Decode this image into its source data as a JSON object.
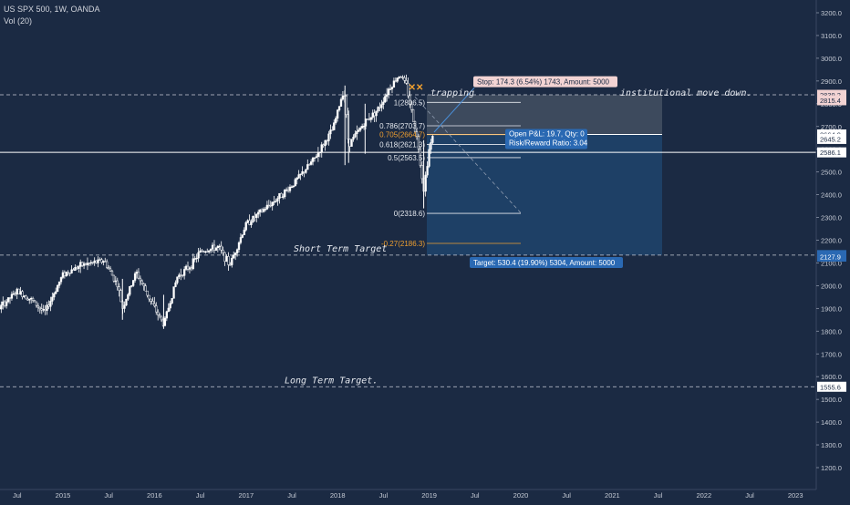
{
  "header": {
    "symbol_line": "US SPX 500, 1W, OANDA",
    "volume_line": "Vol (20)"
  },
  "colors": {
    "background": "#1b2a43",
    "candle_up": "#ffffff",
    "candle_down": "#ffffff",
    "stop_zone": "#4a5566",
    "target_zone": "#1f426a",
    "stop_label_bg": "#f2d3d3",
    "target_label_bg": "#2a69b3",
    "fib_orange": "#f0a030"
  },
  "chart_data": {
    "type": "candlestick",
    "y_axis": {
      "min": 1180,
      "max": 3260,
      "ticks": [
        3200,
        3100,
        3000,
        2900,
        2800,
        2700,
        2600,
        2500,
        2400,
        2300,
        2200,
        2100,
        2000,
        1900,
        1800,
        1700,
        1600,
        1500,
        1400,
        1300,
        1200
      ],
      "tick_labels": [
        "3200.0",
        "3100.0",
        "3000.0",
        "2900.0",
        "2800.0",
        "2700.0",
        "2600.0",
        "2500.0",
        "2400.0",
        "2300.0",
        "2200.0",
        "2100.0",
        "2000.0",
        "1900.0",
        "1800.0",
        "1700.0",
        "1600.0",
        "1500.0",
        "1400.0",
        "1300.0",
        "1200.0"
      ]
    },
    "x_axis": {
      "labels": [
        {
          "t": 2014.5,
          "text": "Jul"
        },
        {
          "t": 2015.0,
          "text": "2015"
        },
        {
          "t": 2015.5,
          "text": "Jul"
        },
        {
          "t": 2016.0,
          "text": "2016"
        },
        {
          "t": 2016.5,
          "text": "Jul"
        },
        {
          "t": 2017.0,
          "text": "2017"
        },
        {
          "t": 2017.5,
          "text": "Jul"
        },
        {
          "t": 2018.0,
          "text": "2018"
        },
        {
          "t": 2018.5,
          "text": "Jul"
        },
        {
          "t": 2019.0,
          "text": "2019"
        },
        {
          "t": 2019.5,
          "text": "Jul"
        },
        {
          "t": 2020.0,
          "text": "2020"
        },
        {
          "t": 2020.5,
          "text": "Jul"
        },
        {
          "t": 2021.0,
          "text": "2021"
        },
        {
          "t": 2021.5,
          "text": "Jul"
        },
        {
          "t": 2022.0,
          "text": "2022"
        },
        {
          "t": 2022.5,
          "text": "Jul"
        },
        {
          "t": 2023.0,
          "text": "2023"
        }
      ]
    },
    "price_path": [
      [
        2014.05,
        1860
      ],
      [
        2014.3,
        1900
      ],
      [
        2014.5,
        1975
      ],
      [
        2014.65,
        1940
      ],
      [
        2014.8,
        1880
      ],
      [
        2015.0,
        2050
      ],
      [
        2015.2,
        2090
      ],
      [
        2015.45,
        2110
      ],
      [
        2015.6,
        2000
      ],
      [
        2015.65,
        1900
      ],
      [
        2015.8,
        2060
      ],
      [
        2016.0,
        1900
      ],
      [
        2016.1,
        1830
      ],
      [
        2016.25,
        2040
      ],
      [
        2016.4,
        2090
      ],
      [
        2016.5,
        2150
      ],
      [
        2016.7,
        2170
      ],
      [
        2016.82,
        2090
      ],
      [
        2017.0,
        2270
      ],
      [
        2017.3,
        2370
      ],
      [
        2017.5,
        2440
      ],
      [
        2017.75,
        2560
      ],
      [
        2017.95,
        2690
      ],
      [
        2018.07,
        2870
      ],
      [
        2018.12,
        2620
      ],
      [
        2018.3,
        2720
      ],
      [
        2018.45,
        2780
      ],
      [
        2018.55,
        2860
      ],
      [
        2018.68,
        2930
      ],
      [
        2018.75,
        2880
      ],
      [
        2018.82,
        2740
      ],
      [
        2018.88,
        2620
      ],
      [
        2018.94,
        2420
      ],
      [
        2019.0,
        2600
      ],
      [
        2019.05,
        2670
      ]
    ],
    "horizontal_levels": [
      {
        "price": 2839.2,
        "label": "2839.2",
        "style": "dashed"
      },
      {
        "price": 2815.4,
        "label": "2815.4",
        "style": "none"
      },
      {
        "price": 2664.9,
        "label": "2664.9",
        "style": "solid"
      },
      {
        "price": 2645.2,
        "label": "2645.2",
        "style": "none"
      },
      {
        "price": 2586.1,
        "label": "2586.1",
        "style": "solid"
      },
      {
        "price": 2134.5,
        "label": "2134.5",
        "style": "dashed"
      },
      {
        "price": 2127.9,
        "label": "2127.9",
        "style": "none"
      },
      {
        "price": 1555.6,
        "label": "1555.6",
        "style": "dashed"
      }
    ],
    "fib_levels": [
      {
        "price": 2806,
        "label": "1(2806.5)"
      },
      {
        "price": 2703,
        "label": "0.786(2703.7)"
      },
      {
        "price": 2664,
        "label": "0.705(2664.7)"
      },
      {
        "price": 2621,
        "label": "0.618(2621.3)"
      },
      {
        "price": 2563,
        "label": "0.5(2563.5)"
      },
      {
        "price": 2318,
        "label": "0(2318.6)"
      },
      {
        "price": 2186,
        "label": "-0.27(2186.3)"
      }
    ],
    "position": {
      "entry": 2664.9,
      "stop": 2839.2,
      "target": 2134.5,
      "stop_text": "Stop: 174.3 (6.54%) 1743, Amount: 5000",
      "target_text": "Target: 530.4 (19.90%) 5304, Amount: 5000",
      "pnl_text": "Open P&L: 19.7, Qty: 0",
      "rr_text": "Risk/Reward Ratio: 3.04"
    },
    "annotations": {
      "trapping": "trapping",
      "institutional": "institutional move down.",
      "short_term": "Short Term Target",
      "long_term": "Long Term Target."
    }
  }
}
